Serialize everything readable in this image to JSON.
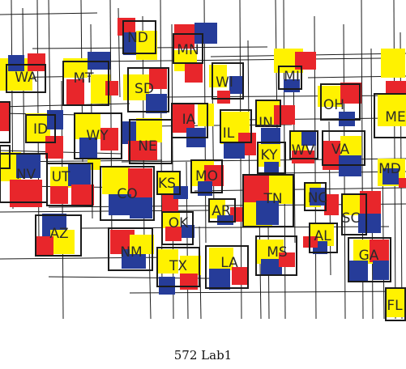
{
  "caption": "572 Lab1",
  "palette": {
    "red": "#e8262b",
    "yellow": "#fff200",
    "blue": "#263c99",
    "line": "#1b1b1b",
    "background": "#ffffff"
  },
  "states": [
    "ND",
    "MN",
    "WA",
    "MT",
    "SD",
    "WI",
    "MI",
    "OH",
    "ME",
    "ID",
    "WY",
    "IA",
    "IL",
    "IN",
    "NE",
    "KY",
    "WV",
    "VA",
    "MD",
    "NV",
    "UT",
    "KS",
    "MO",
    "CO",
    "NC",
    "AR",
    "TN",
    "OK",
    "SC",
    "AZ",
    "AL",
    "NM",
    "TX",
    "LA",
    "MS",
    "GA",
    "FL"
  ]
}
